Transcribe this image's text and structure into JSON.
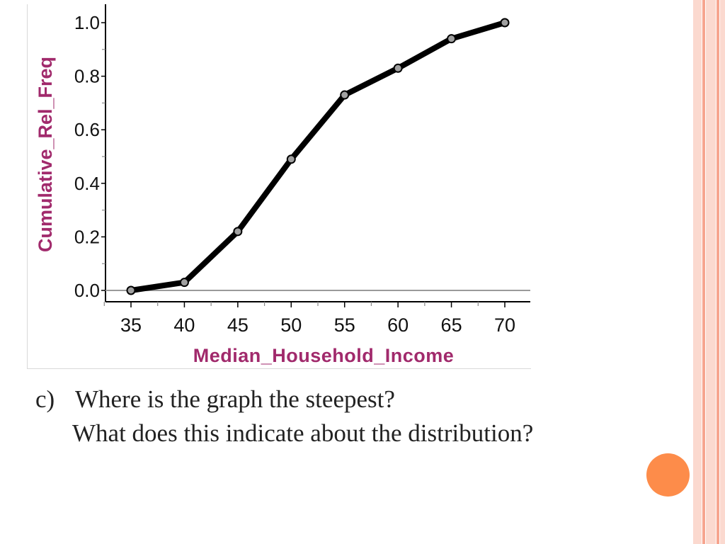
{
  "question": {
    "marker": "c)",
    "line1": "Where is the graph the steepest?",
    "line2": "What does this indicate about the distribution?"
  },
  "colors": {
    "ylabel": "#a12a6c",
    "xlabel": "#a12a6c",
    "line": "#000000",
    "point_fill": "#a0a0a0",
    "accent_dot": "#fd8c4a"
  },
  "chart_data": {
    "type": "line",
    "xlabel": "Median_Household_Income",
    "ylabel": "Cumulative_Rel_Freq",
    "x": [
      35,
      40,
      45,
      50,
      55,
      60,
      65,
      70
    ],
    "y": [
      0.0,
      0.03,
      0.22,
      0.49,
      0.73,
      0.83,
      0.94,
      1.0
    ],
    "x_ticks": [
      "35",
      "40",
      "45",
      "50",
      "55",
      "60",
      "65",
      "70"
    ],
    "y_ticks": [
      "0.0",
      "0.2",
      "0.4",
      "0.6",
      "0.8",
      "1.0"
    ],
    "xlim": [
      32.5,
      72.5
    ],
    "ylim": [
      0,
      1.0
    ],
    "grid": false,
    "markers": true
  }
}
